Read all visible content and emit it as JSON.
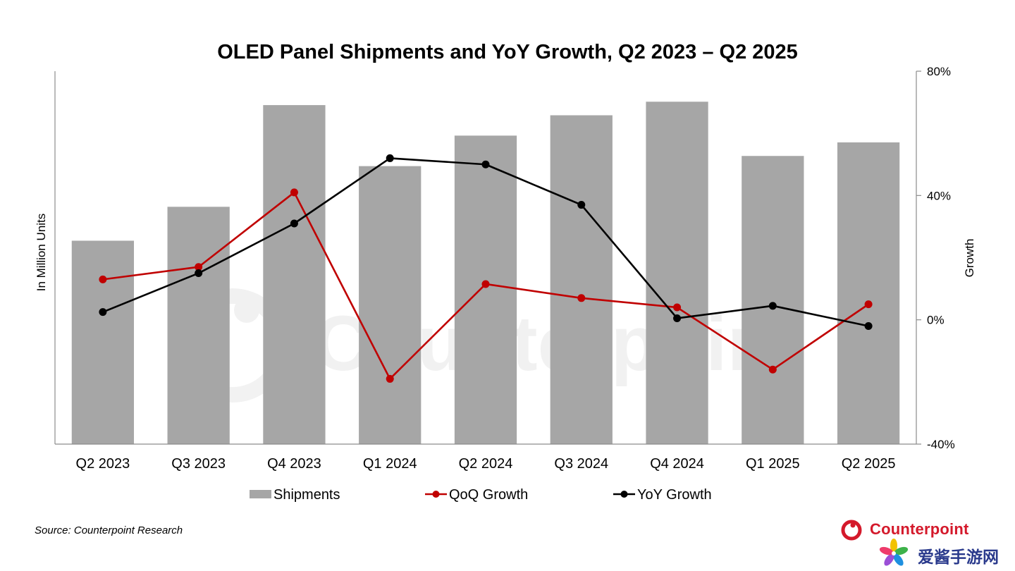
{
  "chart_data": {
    "type": "bar",
    "title": "OLED Panel Shipments and YoY Growth, Q2 2023 – Q2 2025",
    "categories": [
      "Q2 2023",
      "Q3 2023",
      "Q4 2023",
      "Q1 2024",
      "Q2 2024",
      "Q3 2024",
      "Q4 2024",
      "Q1 2025",
      "Q2 2025"
    ],
    "ylabel": "In Million Units",
    "y2label": "Growth",
    "y2lim": [
      -40,
      80
    ],
    "y2ticks": [
      "80%",
      "40%",
      "0%",
      "-40%"
    ],
    "y2tick_values": [
      80,
      40,
      0,
      -40
    ],
    "series": [
      {
        "name": "Shipments",
        "kind": "bar",
        "axis": "left",
        "color": "#a6a6a6",
        "values": [
          60,
          70,
          100,
          82,
          91,
          97,
          101,
          85,
          89
        ]
      },
      {
        "name": "QoQ Growth",
        "kind": "line",
        "axis": "right",
        "color": "#c00000",
        "values": [
          13,
          17,
          41,
          -19,
          11.5,
          7,
          4,
          -16,
          5
        ]
      },
      {
        "name": "YoY Growth",
        "kind": "line",
        "axis": "right",
        "color": "#000000",
        "values": [
          2.5,
          15,
          31,
          52,
          50,
          37,
          0.5,
          4.5,
          -2
        ]
      }
    ],
    "legend_position": "bottom",
    "grid": false
  },
  "source": "Source: Counterpoint Research",
  "watermark": "Counterpoint",
  "logo_text": "Counterpoint",
  "site_text": "爱酱手游网",
  "colors": {
    "brand_red": "#d4192b",
    "site_blue": "#2a3a8c"
  }
}
